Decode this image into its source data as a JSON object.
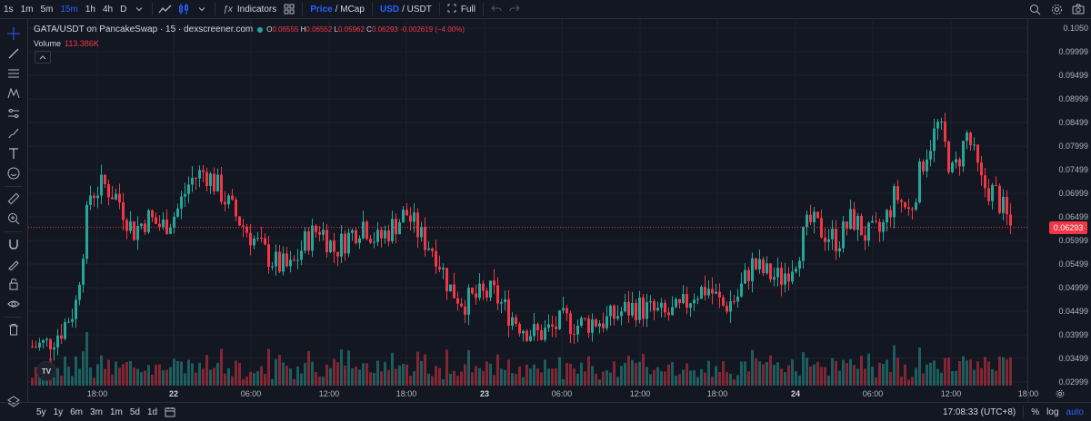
{
  "toolbar": {
    "intervals": [
      "1s",
      "1m",
      "5m",
      "15m",
      "1h",
      "4h",
      "D"
    ],
    "active_interval": "15m",
    "indicators_label": "Indicators",
    "price_label": "Price",
    "mcap_label": "/ MCap",
    "usd_label": "USD",
    "usdt_label": "/ USDT",
    "full_label": "Full"
  },
  "legend": {
    "title": "GATA/USDT on PancakeSwap · 15 · dexscreener.com",
    "open_label": "O",
    "open": "0.06555",
    "high_label": "H",
    "high": "0.06552",
    "low_label": "L",
    "low": "0.05962",
    "close_label": "C",
    "close": "0.06293",
    "change": "-0.002619 (−4.00%)",
    "volume_label": "Volume",
    "volume": "113.386K"
  },
  "price_axis": {
    "labels": [
      "0.1050",
      "0.09999",
      "0.09499",
      "0.08999",
      "0.08499",
      "0.07999",
      "0.07499",
      "0.06999",
      "0.06499",
      "0.05999",
      "0.05499",
      "0.04999",
      "0.04499",
      "0.03999",
      "0.03499",
      "0.02999"
    ],
    "current_price": "0.06293"
  },
  "time_axis": {
    "labels": [
      "18:00",
      "22",
      "06:00",
      "12:00",
      "18:00",
      "23",
      "06:00",
      "12:00",
      "18:00",
      "24",
      "06:00",
      "12:00",
      "18:00"
    ]
  },
  "bottom": {
    "ranges": [
      "5y",
      "1y",
      "6m",
      "3m",
      "1m",
      "5d",
      "1d"
    ],
    "clock": "17:08:33 (UTC+8)",
    "percent_label": "%",
    "log_label": "log",
    "auto_label": "auto"
  },
  "colors": {
    "up": "#26a69a",
    "down": "#f23645",
    "background": "#131722",
    "grid": "#1e222d"
  },
  "chart_data": {
    "type": "candlestick",
    "ylim": [
      0.0295,
      0.1055
    ],
    "x": [
      "18:00",
      "22",
      "06:00",
      "12:00",
      "18:00",
      "23",
      "06:00",
      "12:00",
      "18:00",
      "24",
      "06:00",
      "12:00",
      "18:00"
    ],
    "close_path": [
      0.0375,
      0.038,
      0.041,
      0.046,
      0.07,
      0.072,
      0.069,
      0.062,
      0.065,
      0.063,
      0.066,
      0.073,
      0.075,
      0.071,
      0.066,
      0.062,
      0.058,
      0.055,
      0.054,
      0.06,
      0.063,
      0.058,
      0.061,
      0.064,
      0.06,
      0.063,
      0.066,
      0.061,
      0.058,
      0.05,
      0.047,
      0.048,
      0.049,
      0.045,
      0.042,
      0.04,
      0.041,
      0.043,
      0.042,
      0.043,
      0.043,
      0.045,
      0.046,
      0.045,
      0.044,
      0.045,
      0.049,
      0.05,
      0.046,
      0.048,
      0.055,
      0.053,
      0.052,
      0.056,
      0.064,
      0.062,
      0.06,
      0.065,
      0.061,
      0.062,
      0.07,
      0.066,
      0.078,
      0.085,
      0.074,
      0.083,
      0.072,
      0.07,
      0.063
    ],
    "volume_max": "113.386K"
  }
}
